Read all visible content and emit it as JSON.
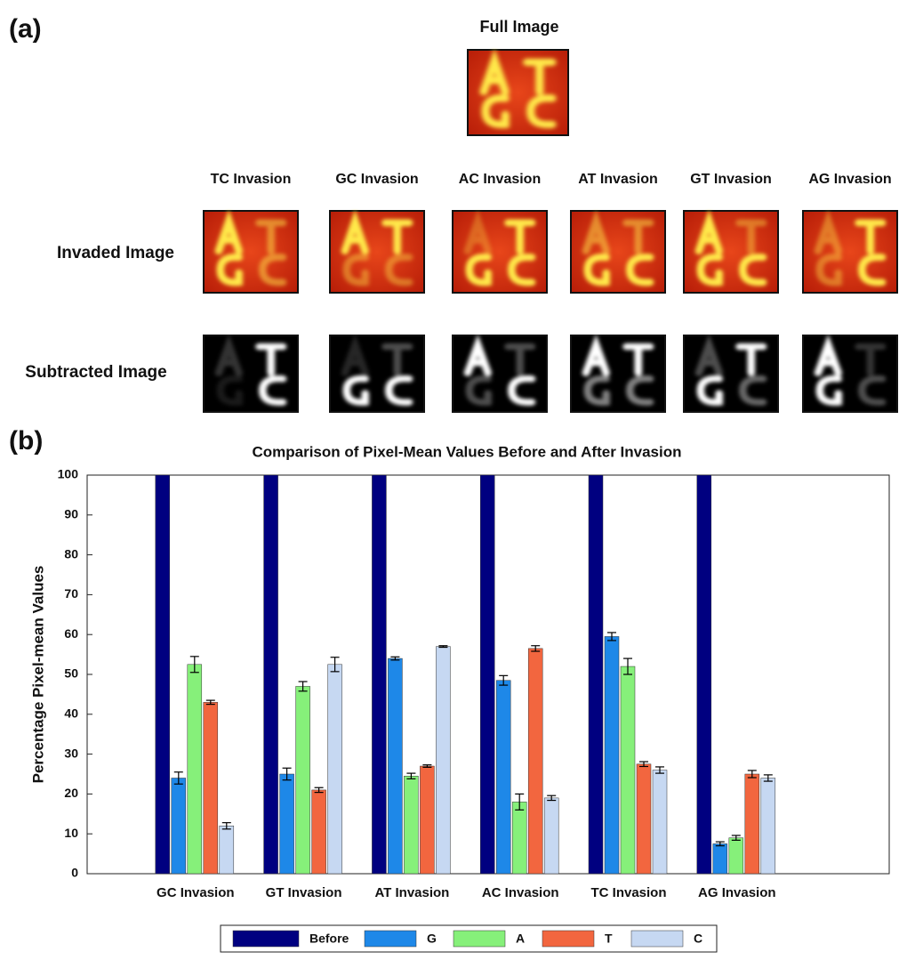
{
  "panel_a": {
    "label": "(a)",
    "full_image_title": "Full Image",
    "columns": [
      "TC Invasion",
      "GC  Invasion",
      "AC  Invasion",
      "AT Invasion",
      "GT  Invasion",
      "AG  Invasion"
    ],
    "rows": [
      "Invaded Image",
      "Subtracted Image"
    ]
  },
  "panel_b_label": "(b)",
  "chart_data": {
    "type": "bar",
    "title": "Comparison of Pixel-Mean Values Before and After Invasion",
    "y_label": "Percentage Pixel-mean Values",
    "categories": [
      "GC Invasion",
      "GT Invasion",
      "AT Invasion",
      "AC Invasion",
      "TC Invasion",
      "AG Invasion"
    ],
    "series": [
      {
        "name": "Before",
        "color": "#000080",
        "values": [
          100,
          100,
          100,
          100,
          100,
          100
        ]
      },
      {
        "name": "G",
        "color": "#1e88e8",
        "values": [
          24,
          25,
          54,
          48.5,
          59.5,
          7.5
        ],
        "errors": [
          1.5,
          1.5,
          0.4,
          1.2,
          1,
          0.5
        ]
      },
      {
        "name": "A",
        "color": "#86f07a",
        "values": [
          52.5,
          47,
          24.5,
          18,
          52,
          9
        ],
        "errors": [
          2,
          1.2,
          0.7,
          2,
          2,
          0.6
        ]
      },
      {
        "name": "T",
        "color": "#f2663f",
        "values": [
          43,
          21,
          27,
          56.5,
          27.5,
          25
        ],
        "errors": [
          0.5,
          0.6,
          0.3,
          0.7,
          0.6,
          0.9
        ]
      },
      {
        "name": "C",
        "color": "#c6d8f2",
        "values": [
          12,
          52.5,
          57,
          19,
          26,
          24
        ],
        "errors": [
          0.8,
          1.8,
          0.2,
          0.6,
          0.8,
          0.8
        ]
      }
    ],
    "ylim": [
      0,
      100
    ],
    "yticks": [
      0,
      10,
      20,
      30,
      40,
      50,
      60,
      70,
      80,
      90,
      100
    ],
    "grid": false,
    "legend": "bottom"
  }
}
